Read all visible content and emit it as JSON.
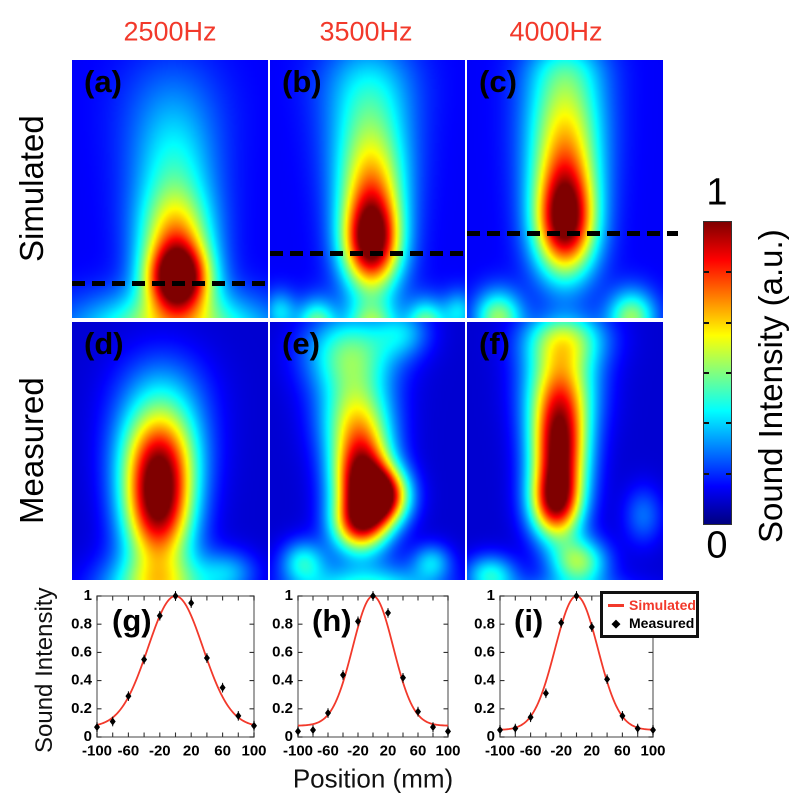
{
  "figure": {
    "column_headers": [
      "2500Hz",
      "3500Hz",
      "4000Hz"
    ],
    "row_labels": [
      "Simulated",
      "Measured"
    ],
    "colorbar": {
      "top_label": "1",
      "bottom_label": "0",
      "axis_label": "Sound Intensity (a.u.)",
      "colormap": "jet",
      "n_internal_ticks": 5
    },
    "bottom_axes": {
      "ylabel": "Sound Intensity",
      "xlabel": "Position (mm)"
    },
    "legend": {
      "items": [
        {
          "label": "Simulated",
          "marker": "line",
          "color": "#f2392b"
        },
        {
          "label": "Measured",
          "marker": "diamond",
          "color": "#000000"
        }
      ]
    },
    "colors": {
      "accent_red": "#f2392b",
      "heatmap_annotation": "#000000"
    }
  },
  "chart_data": [
    {
      "type": "heatmap",
      "panel": "a",
      "label": "(a)",
      "row": "Simulated",
      "frequency": "2500Hz",
      "value_range": [
        0,
        1
      ],
      "colormap": "jet",
      "base": 0.12,
      "dashed_line": {
        "y_frac": 0.864,
        "x0_frac": 0.0,
        "x1_frac": 1.0
      },
      "blobs": [
        {
          "cx": 0.54,
          "cy": 0.85,
          "sx": 0.115,
          "sy": 0.095,
          "amp": 0.92
        },
        {
          "cx": 0.53,
          "cy": 0.68,
          "sx": 0.13,
          "sy": 0.12,
          "amp": 0.42
        },
        {
          "cx": 0.52,
          "cy": 0.46,
          "sx": 0.15,
          "sy": 0.17,
          "amp": 0.25
        },
        {
          "cx": 0.51,
          "cy": 0.18,
          "sx": 0.19,
          "sy": 0.16,
          "amp": 0.1
        },
        {
          "cx": 0.52,
          "cy": 1.05,
          "sx": 0.33,
          "sy": 0.1,
          "amp": 0.45
        }
      ]
    },
    {
      "type": "heatmap",
      "panel": "b",
      "label": "(b)",
      "row": "Simulated",
      "frequency": "3500Hz",
      "value_range": [
        0,
        1
      ],
      "colormap": "jet",
      "base": 0.12,
      "dashed_line": {
        "y_frac": 0.748,
        "x0_frac": 0.0,
        "x1_frac": 1.0
      },
      "blobs": [
        {
          "cx": 0.52,
          "cy": 0.71,
          "sx": 0.105,
          "sy": 0.13,
          "amp": 0.92
        },
        {
          "cx": 0.52,
          "cy": 0.48,
          "sx": 0.125,
          "sy": 0.14,
          "amp": 0.42
        },
        {
          "cx": 0.51,
          "cy": 0.25,
          "sx": 0.15,
          "sy": 0.15,
          "amp": 0.25
        },
        {
          "cx": 0.5,
          "cy": 0.06,
          "sx": 0.18,
          "sy": 0.12,
          "amp": 0.12
        },
        {
          "cx": 0.24,
          "cy": 1.03,
          "sx": 0.07,
          "sy": 0.07,
          "amp": 0.38
        },
        {
          "cx": 0.52,
          "cy": 1.05,
          "sx": 0.1,
          "sy": 0.08,
          "amp": 0.42
        },
        {
          "cx": 0.8,
          "cy": 1.03,
          "sx": 0.07,
          "sy": 0.07,
          "amp": 0.38
        },
        {
          "cx": 0.05,
          "cy": 0.98,
          "sx": 0.06,
          "sy": 0.06,
          "amp": 0.22
        },
        {
          "cx": 0.97,
          "cy": 0.98,
          "sx": 0.06,
          "sy": 0.06,
          "amp": 0.22
        }
      ]
    },
    {
      "type": "heatmap",
      "panel": "c",
      "label": "(c)",
      "row": "Simulated",
      "frequency": "4000Hz",
      "value_range": [
        0,
        1
      ],
      "colormap": "jet",
      "base": 0.12,
      "dashed_line": {
        "y_frac": 0.67,
        "x0_frac": 0.0,
        "x1_frac": 1.077
      },
      "blobs": [
        {
          "cx": 0.5,
          "cy": 0.63,
          "sx": 0.11,
          "sy": 0.145,
          "amp": 0.92
        },
        {
          "cx": 0.5,
          "cy": 0.38,
          "sx": 0.13,
          "sy": 0.14,
          "amp": 0.42
        },
        {
          "cx": 0.5,
          "cy": 0.16,
          "sx": 0.14,
          "sy": 0.13,
          "amp": 0.3
        },
        {
          "cx": 0.5,
          "cy": 0.02,
          "sx": 0.15,
          "sy": 0.08,
          "amp": 0.12
        },
        {
          "cx": 0.16,
          "cy": 1.0,
          "sx": 0.085,
          "sy": 0.075,
          "amp": 0.4
        },
        {
          "cx": 0.84,
          "cy": 1.0,
          "sx": 0.085,
          "sy": 0.075,
          "amp": 0.4
        },
        {
          "cx": 0.5,
          "cy": 1.08,
          "sx": 0.12,
          "sy": 0.07,
          "amp": 0.28
        }
      ]
    },
    {
      "type": "heatmap",
      "panel": "d",
      "label": "(d)",
      "row": "Measured",
      "frequency": "2500Hz",
      "value_range": [
        0,
        1
      ],
      "colormap": "jet",
      "base": 0.08,
      "dashed_line": null,
      "blobs": [
        {
          "cx": 0.44,
          "cy": 0.71,
          "sx": 0.125,
          "sy": 0.175,
          "amp": 0.9
        },
        {
          "cx": 0.45,
          "cy": 0.49,
          "sx": 0.15,
          "sy": 0.14,
          "amp": 0.4
        },
        {
          "cx": 0.46,
          "cy": 0.27,
          "sx": 0.17,
          "sy": 0.13,
          "amp": 0.15
        },
        {
          "cx": 0.44,
          "cy": 1.04,
          "sx": 0.2,
          "sy": 0.09,
          "amp": 0.42
        },
        {
          "cx": 0.8,
          "cy": 0.97,
          "sx": 0.1,
          "sy": 0.06,
          "amp": 0.18
        }
      ]
    },
    {
      "type": "heatmap",
      "panel": "e",
      "label": "(e)",
      "row": "Measured",
      "frequency": "3500Hz",
      "value_range": [
        0,
        1
      ],
      "colormap": "jet",
      "base": 0.08,
      "dashed_line": null,
      "blobs": [
        {
          "cx": 0.47,
          "cy": 0.61,
          "sx": 0.105,
          "sy": 0.13,
          "amp": 0.88
        },
        {
          "cx": 0.585,
          "cy": 0.675,
          "sx": 0.09,
          "sy": 0.075,
          "amp": 0.72
        },
        {
          "cx": 0.46,
          "cy": 0.79,
          "sx": 0.1,
          "sy": 0.075,
          "amp": 0.55
        },
        {
          "cx": 0.44,
          "cy": 0.37,
          "sx": 0.13,
          "sy": 0.12,
          "amp": 0.42
        },
        {
          "cx": 0.41,
          "cy": 0.12,
          "sx": 0.16,
          "sy": 0.11,
          "amp": 0.38
        },
        {
          "cx": 0.68,
          "cy": 0.04,
          "sx": 0.1,
          "sy": 0.07,
          "amp": 0.2
        },
        {
          "cx": 0.17,
          "cy": 0.93,
          "sx": 0.08,
          "sy": 0.06,
          "amp": 0.28
        },
        {
          "cx": 0.5,
          "cy": 1.06,
          "sx": 0.25,
          "sy": 0.08,
          "amp": 0.4
        },
        {
          "cx": 0.83,
          "cy": 0.93,
          "sx": 0.07,
          "sy": 0.05,
          "amp": 0.22
        }
      ]
    },
    {
      "type": "heatmap",
      "panel": "f",
      "label": "(f)",
      "row": "Measured",
      "frequency": "4000Hz",
      "value_range": [
        0,
        1
      ],
      "colormap": "jet",
      "base": 0.08,
      "dashed_line": null,
      "blobs": [
        {
          "cx": 0.47,
          "cy": 0.5,
          "sx": 0.1,
          "sy": 0.16,
          "amp": 0.88
        },
        {
          "cx": 0.45,
          "cy": 0.71,
          "sx": 0.09,
          "sy": 0.095,
          "amp": 0.62
        },
        {
          "cx": 0.48,
          "cy": 0.24,
          "sx": 0.13,
          "sy": 0.14,
          "amp": 0.45
        },
        {
          "cx": 0.5,
          "cy": 0.06,
          "sx": 0.15,
          "sy": 0.08,
          "amp": 0.32
        },
        {
          "cx": 0.57,
          "cy": 0.93,
          "sx": 0.1,
          "sy": 0.065,
          "amp": 0.42
        },
        {
          "cx": 0.12,
          "cy": 0.98,
          "sx": 0.09,
          "sy": 0.055,
          "amp": 0.3
        },
        {
          "cx": 0.5,
          "cy": 1.08,
          "sx": 0.28,
          "sy": 0.06,
          "amp": 0.25
        },
        {
          "cx": 0.9,
          "cy": 0.75,
          "sx": 0.07,
          "sy": 0.08,
          "amp": 0.15
        }
      ]
    },
    {
      "type": "line+scatter",
      "panel": "g",
      "label": "(g)",
      "frequency": "2500Hz",
      "xlim": [
        -100,
        100
      ],
      "ylim": [
        0,
        1
      ],
      "x_ticks": [
        -100,
        -60,
        -20,
        20,
        60,
        100
      ],
      "x_tick_labels": [
        "-100",
        "-60",
        "-20",
        "20",
        "60",
        "100"
      ],
      "minor_x_step": 20,
      "y_ticks": [
        0,
        0.2,
        0.4,
        0.6,
        0.8,
        1
      ],
      "y_tick_labels": [
        "0",
        "0.2",
        "0.4",
        "0.6",
        "0.8",
        "1"
      ],
      "measured": {
        "x": [
          -100,
          -80,
          -60,
          -40,
          -20,
          0,
          20,
          40,
          60,
          80,
          100
        ],
        "y": [
          0.07,
          0.11,
          0.29,
          0.55,
          0.86,
          1.0,
          0.95,
          0.56,
          0.35,
          0.15,
          0.08
        ],
        "error": 0.02
      },
      "simulated_curve": {
        "model": "gaussian",
        "baseline": 0.07,
        "amplitude": 0.93,
        "center": 0,
        "sigma": 35
      }
    },
    {
      "type": "line+scatter",
      "panel": "h",
      "label": "(h)",
      "frequency": "3500Hz",
      "xlim": [
        -100,
        100
      ],
      "ylim": [
        0,
        1
      ],
      "x_ticks": [
        -100,
        -60,
        -20,
        20,
        60,
        100
      ],
      "x_tick_labels": [
        "-100",
        "-60",
        "-20",
        "20",
        "60",
        "100"
      ],
      "minor_x_step": 20,
      "y_ticks": [
        0,
        0.2,
        0.4,
        0.6,
        0.8,
        1
      ],
      "y_tick_labels": [
        "0",
        "0.2",
        "0.4",
        "0.6",
        "0.8",
        "1"
      ],
      "measured": {
        "x": [
          -100,
          -80,
          -60,
          -40,
          -20,
          0,
          20,
          40,
          60,
          80,
          100
        ],
        "y": [
          0.04,
          0.05,
          0.17,
          0.44,
          0.82,
          1.0,
          0.88,
          0.42,
          0.18,
          0.07,
          0.04
        ],
        "error": 0.02
      },
      "simulated_curve": {
        "model": "gaussian",
        "baseline": 0.08,
        "amplitude": 0.92,
        "center": 0,
        "sigma": 27
      }
    },
    {
      "type": "line+scatter",
      "panel": "i",
      "label": "(i)",
      "frequency": "4000Hz",
      "xlim": [
        -100,
        100
      ],
      "ylim": [
        0,
        1
      ],
      "x_ticks": [
        -100,
        -60,
        -20,
        20,
        60,
        100
      ],
      "x_tick_labels": [
        "-100",
        "-60",
        "-20",
        "20",
        "60",
        "100"
      ],
      "minor_x_step": 20,
      "y_ticks": [
        0,
        0.2,
        0.4,
        0.6,
        0.8,
        1
      ],
      "y_tick_labels": [
        "0",
        "0.2",
        "0.4",
        "0.6",
        "0.8",
        "1"
      ],
      "measured": {
        "x": [
          -100,
          -80,
          -60,
          -40,
          -20,
          0,
          20,
          40,
          60,
          80,
          100
        ],
        "y": [
          0.05,
          0.06,
          0.14,
          0.31,
          0.81,
          1.0,
          0.78,
          0.41,
          0.15,
          0.06,
          0.05
        ],
        "error": 0.02
      },
      "simulated_curve": {
        "model": "gaussian",
        "baseline": 0.05,
        "amplitude": 0.95,
        "center": 0,
        "sigma": 28
      }
    }
  ]
}
